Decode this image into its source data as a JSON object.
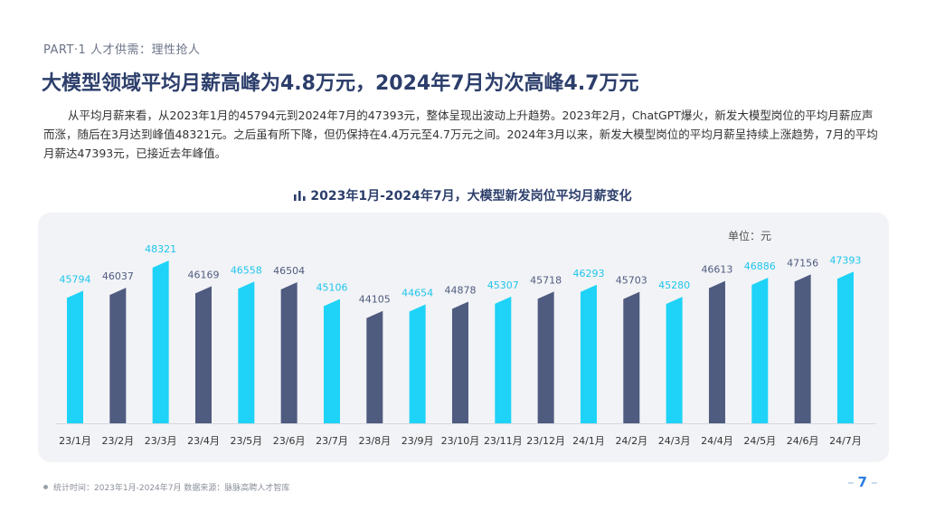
{
  "header": {
    "part_label": "PART·1  人才供需：理性抢人",
    "headline": "大模型领域平均月薪高峰为4.8万元，2024年7月为次高峰4.7万元",
    "intro": "从平均月薪来看，从2023年1月的45794元到2024年7月的47393元，整体呈现出波动上升趋势。2023年2月，ChatGPT爆火，新发大模型岗位的平均月薪应声而涨，随后在3月达到峰值48321元。之后虽有所下降，但仍保持在4.4万元至4.7万元之间。2024年3月以来，新发大模型岗位的平均月薪呈持续上涨趋势，7月的平均月薪达47393元，已接近去年峰值。"
  },
  "chart_data": {
    "type": "bar",
    "title": "2023年1月-2024年7月，大模型新发岗位平均月薪变化",
    "unit": "单位：元",
    "categories": [
      "23/1月",
      "23/2月",
      "23/3月",
      "23/4月",
      "23/5月",
      "23/6月",
      "23/7月",
      "23/8月",
      "23/9月",
      "23/10月",
      "23/11月",
      "23/12月",
      "24/1月",
      "24/2月",
      "24/3月",
      "24/4月",
      "24/5月",
      "24/6月",
      "24/7月"
    ],
    "values": [
      45794,
      46037,
      48321,
      46169,
      46558,
      46504,
      45106,
      44105,
      44654,
      44878,
      45307,
      45718,
      46293,
      45703,
      45280,
      46613,
      46886,
      47156,
      47393
    ],
    "bar_colors": [
      "#1ed3f7",
      "#4f5b7f",
      "#1ed3f7",
      "#4f5b7f",
      "#1ed3f7",
      "#4f5b7f",
      "#1ed3f7",
      "#4f5b7f",
      "#1ed3f7",
      "#4f5b7f",
      "#1ed3f7",
      "#4f5b7f",
      "#1ed3f7",
      "#4f5b7f",
      "#1ed3f7",
      "#4f5b7f",
      "#1ed3f7",
      "#4f5b7f",
      "#1ed3f7"
    ],
    "label_colors": [
      "#1ec6ec",
      "#4f5b7f",
      "#1ec6ec",
      "#4f5b7f",
      "#1ec6ec",
      "#4f5b7f",
      "#1ec6ec",
      "#4f5b7f",
      "#1ec6ec",
      "#4f5b7f",
      "#1ec6ec",
      "#4f5b7f",
      "#1ec6ec",
      "#4f5b7f",
      "#1ec6ec",
      "#4f5b7f",
      "#1ec6ec",
      "#4f5b7f",
      "#1ec6ec"
    ],
    "colors": {
      "cyan": "#1ed3f7",
      "navy": "#4f5b7f"
    },
    "ylim": [
      35000,
      48321
    ],
    "grid": false,
    "legend": "none"
  },
  "footer": {
    "note": "统计时间：2023年1月-2024年7月    数据来源：脉脉高聘人才智库",
    "page_number": "7"
  }
}
